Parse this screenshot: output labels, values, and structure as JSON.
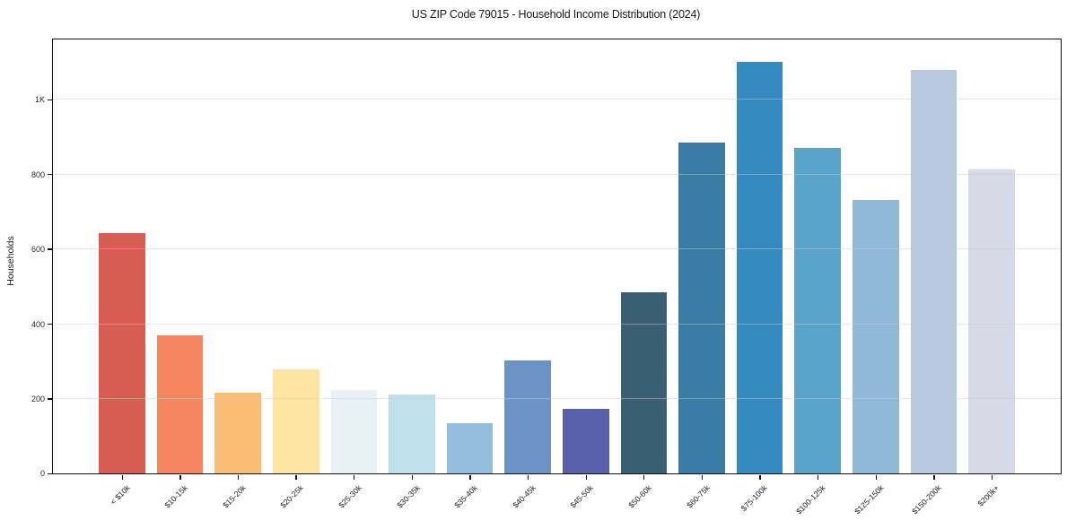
{
  "chart_data": {
    "type": "bar",
    "title": "US ZIP Code 79015 - Household Income Distribution (2024)",
    "xlabel": "",
    "ylabel": "Households",
    "categories": [
      "< $10k",
      "$10-15k",
      "$15-20k",
      "$20-25k",
      "$25-30k",
      "$30-35k",
      "$35-40k",
      "$40-45k",
      "$45-50k",
      "$50-60k",
      "$60-75k",
      "$75-100k",
      "$100-125k",
      "$125-150k",
      "$150-200k",
      "$200k+"
    ],
    "values": [
      642,
      370,
      215,
      278,
      222,
      210,
      134,
      301,
      172,
      485,
      885,
      1100,
      870,
      730,
      1078,
      813
    ],
    "bar_colors": [
      "#d75d53",
      "#f5865f",
      "#fbbc74",
      "#fde5a0",
      "#e7f1f6",
      "#bfdfec",
      "#92bddc",
      "#6d92c4",
      "#5a5fa9",
      "#3a5f72",
      "#3a7ca4",
      "#358bc0",
      "#5ba4c9",
      "#91b7d9",
      "#b8c9df",
      "#d7d9e6"
    ],
    "y_ticks": [
      {
        "value": 0,
        "label": "0"
      },
      {
        "value": 200,
        "label": "200"
      },
      {
        "value": 400,
        "label": "400"
      },
      {
        "value": 600,
        "label": "600"
      },
      {
        "value": 800,
        "label": "800"
      },
      {
        "value": 1000,
        "label": "1K"
      }
    ],
    "ylim": [
      0,
      1160
    ],
    "grid": "horizontal-on-top",
    "legend": "none",
    "frame": "full-box",
    "colors": {
      "spine": "#0f0f0f",
      "text": "#1a1a1a",
      "tick_text": "#262626",
      "background": "#ffffff",
      "gridline": "#e6e6e8"
    }
  }
}
